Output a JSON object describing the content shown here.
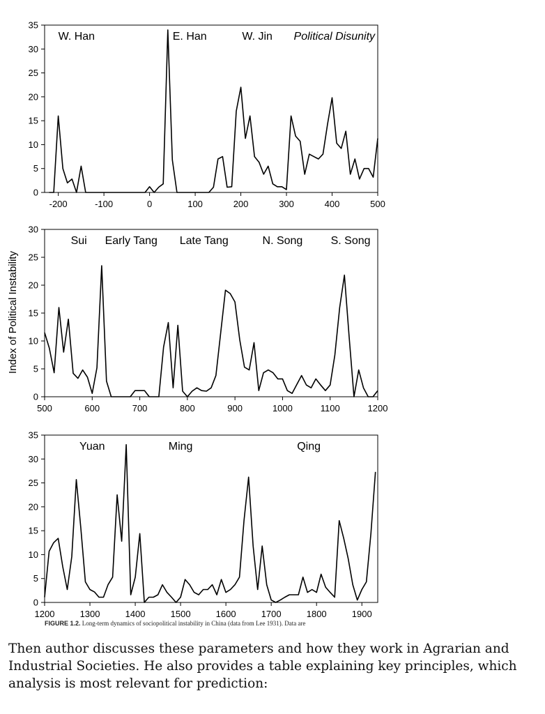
{
  "chart_data": [
    {
      "type": "line",
      "title": "",
      "xlabel": "",
      "ylabel": "",
      "xlim": [
        -230,
        500
      ],
      "ylim": [
        0,
        35
      ],
      "xticks": [
        -200,
        -100,
        0,
        100,
        200,
        300,
        400,
        500
      ],
      "yticks": [
        0,
        5,
        10,
        15,
        20,
        25,
        30,
        35
      ],
      "annotations": [
        {
          "text": "W. Han",
          "x": -160,
          "style": "normal"
        },
        {
          "text": "E. Han",
          "x": 88,
          "style": "normal"
        },
        {
          "text": "W. Jin",
          "x": 236,
          "style": "normal"
        },
        {
          "text": "Political Disunity",
          "x": 405,
          "style": "italic"
        }
      ],
      "series": [
        {
          "x": [
            -220,
            -210,
            -200,
            -190,
            -180,
            -170,
            -160,
            -150,
            -140,
            -130,
            -120,
            -110,
            -100,
            -90,
            -80,
            -70,
            -60,
            -50,
            -40,
            -30,
            -20,
            -10,
            0,
            10,
            20,
            30,
            40,
            50,
            60,
            70,
            80,
            90,
            100,
            110,
            120,
            130,
            140,
            150,
            160,
            170,
            180,
            190,
            200,
            210,
            220,
            230,
            240,
            250,
            260,
            270,
            280,
            290,
            300,
            310,
            320,
            330,
            340,
            350,
            360,
            370,
            380,
            390,
            400,
            410,
            420,
            430,
            440,
            450,
            460,
            470,
            480,
            490,
            500
          ],
          "y": [
            0,
            0,
            16,
            5,
            2,
            2.8,
            0,
            5.5,
            0,
            0,
            0,
            0,
            0,
            0,
            0,
            0,
            0,
            0,
            0,
            0,
            0,
            0,
            1.2,
            0,
            1.1,
            1.8,
            34,
            6.8,
            0,
            0,
            0,
            0,
            0,
            0,
            0,
            0,
            1.1,
            7,
            7.5,
            1.1,
            1.2,
            17,
            22,
            11.3,
            16,
            7.5,
            6.3,
            3.8,
            5.5,
            1.8,
            1.2,
            1.2,
            0.6,
            16,
            11.8,
            10.7,
            3.8,
            8,
            7.5,
            7,
            8,
            14.3,
            19.8,
            10.3,
            9.2,
            12.8,
            3.8,
            7,
            2.8,
            5,
            5,
            3.2,
            11.3
          ]
        }
      ]
    },
    {
      "type": "line",
      "title": "",
      "xlabel": "",
      "ylabel": "Index of Political Instability",
      "xlim": [
        500,
        1200
      ],
      "ylim": [
        0,
        30
      ],
      "xticks": [
        500,
        600,
        700,
        800,
        900,
        1000,
        1100,
        1200
      ],
      "yticks": [
        0,
        5,
        10,
        15,
        20,
        25,
        30
      ],
      "annotations": [
        {
          "text": "Sui",
          "x": 572,
          "style": "normal"
        },
        {
          "text": "Early Tang",
          "x": 682,
          "style": "normal"
        },
        {
          "text": "Late Tang",
          "x": 835,
          "style": "normal"
        },
        {
          "text": "N. Song",
          "x": 1000,
          "style": "normal"
        },
        {
          "text": "S. Song",
          "x": 1143,
          "style": "normal"
        }
      ],
      "series": [
        {
          "x": [
            500,
            510,
            520,
            530,
            540,
            550,
            560,
            570,
            580,
            590,
            600,
            610,
            620,
            630,
            640,
            650,
            660,
            670,
            680,
            690,
            700,
            710,
            720,
            730,
            740,
            750,
            760,
            770,
            780,
            790,
            800,
            810,
            820,
            830,
            840,
            850,
            860,
            870,
            880,
            890,
            900,
            910,
            920,
            930,
            940,
            950,
            960,
            970,
            980,
            990,
            1000,
            1010,
            1020,
            1030,
            1040,
            1050,
            1060,
            1070,
            1080,
            1090,
            1100,
            1110,
            1120,
            1130,
            1140,
            1150,
            1160,
            1170,
            1180,
            1190,
            1200
          ],
          "y": [
            11.5,
            8.7,
            4.3,
            16,
            8,
            13.9,
            4.2,
            3.3,
            4.8,
            3.5,
            0.6,
            5.2,
            23.5,
            2.8,
            0,
            0,
            0,
            0,
            0,
            1.1,
            1.1,
            1.1,
            0,
            0,
            0,
            8.9,
            13.3,
            1.6,
            12.8,
            1,
            0,
            1,
            1.6,
            1.1,
            1,
            1.6,
            3.8,
            11.5,
            19.1,
            18.5,
            17,
            10.2,
            5.3,
            4.8,
            9.7,
            1.1,
            4.3,
            4.8,
            4.3,
            3.2,
            3.2,
            1.1,
            0.6,
            2.2,
            3.8,
            2.1,
            1.6,
            3.2,
            2.1,
            1.1,
            2.1,
            7.5,
            16,
            21.8,
            10.7,
            0,
            4.8,
            1.6,
            0,
            0,
            1.1
          ]
        }
      ]
    },
    {
      "type": "line",
      "title": "",
      "xlabel": "",
      "ylabel": "",
      "xlim": [
        1200,
        1935
      ],
      "ylim": [
        0,
        35
      ],
      "xticks": [
        1200,
        1300,
        1400,
        1500,
        1600,
        1700,
        1800,
        1900
      ],
      "yticks": [
        0,
        5,
        10,
        15,
        20,
        25,
        30,
        35
      ],
      "annotations": [
        {
          "text": "Yuan",
          "x": 1305,
          "style": "normal"
        },
        {
          "text": "Ming",
          "x": 1500,
          "style": "normal"
        },
        {
          "text": "Qing",
          "x": 1783,
          "style": "normal"
        }
      ],
      "series": [
        {
          "x": [
            1200,
            1210,
            1220,
            1230,
            1240,
            1250,
            1260,
            1270,
            1280,
            1290,
            1300,
            1310,
            1320,
            1330,
            1340,
            1350,
            1360,
            1370,
            1380,
            1390,
            1400,
            1410,
            1420,
            1430,
            1440,
            1450,
            1460,
            1470,
            1480,
            1490,
            1500,
            1510,
            1520,
            1530,
            1540,
            1550,
            1560,
            1570,
            1580,
            1590,
            1600,
            1610,
            1620,
            1630,
            1640,
            1650,
            1660,
            1670,
            1680,
            1690,
            1700,
            1710,
            1720,
            1730,
            1740,
            1750,
            1760,
            1770,
            1780,
            1790,
            1800,
            1810,
            1820,
            1830,
            1840,
            1850,
            1860,
            1870,
            1880,
            1890,
            1900,
            1910,
            1920,
            1930
          ],
          "y": [
            1.1,
            10.7,
            12.5,
            13.4,
            7.5,
            2.7,
            9.6,
            25.7,
            15.5,
            4.3,
            2.7,
            2.2,
            1.1,
            1.1,
            3.7,
            5.3,
            22.5,
            12.8,
            33,
            1.6,
            5.3,
            14.4,
            0,
            1.1,
            1.1,
            1.6,
            3.7,
            2.1,
            1.1,
            0,
            1.1,
            4.8,
            3.7,
            2.1,
            1.6,
            2.7,
            2.7,
            3.7,
            1.6,
            4.8,
            2.1,
            2.7,
            3.7,
            5.3,
            17.1,
            26.2,
            11.8,
            2.7,
            11.8,
            3.7,
            0.5,
            0,
            0.5,
            1.1,
            1.6,
            1.6,
            1.6,
            5.3,
            2.1,
            2.7,
            2.1,
            5.9,
            3.2,
            2.1,
            1.1,
            17.1,
            13.4,
            9.1,
            3.7,
            0.5,
            2.7,
            4.3,
            14.4,
            27.3
          ]
        }
      ]
    }
  ],
  "caption": {
    "label": "FIGURE 1.2.",
    "text": " Long-term dynamics of sociopolitical instability in China (data from Lee 1931). Data are"
  },
  "body_text": "Then author discusses these parameters and how they work in Agrarian and Industrial Societies. He also provides a table explaining key principles, which analysis is most relevant for prediction:"
}
